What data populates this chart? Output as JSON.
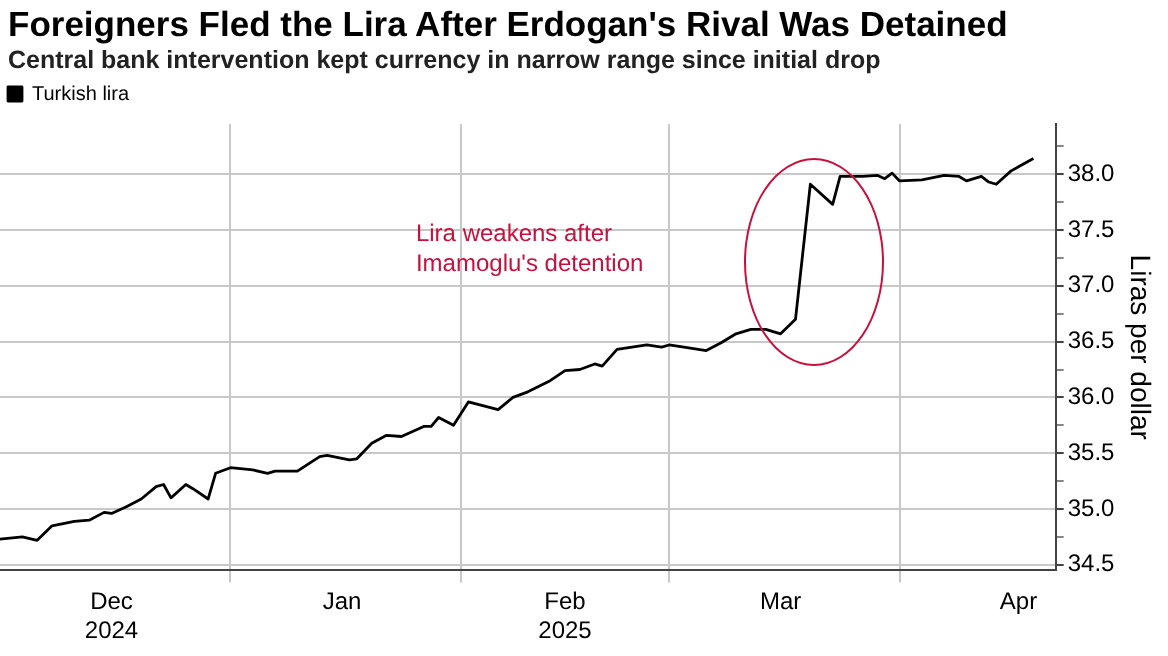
{
  "chart_data": {
    "type": "line",
    "title": "Foreigners Fled the Lira After Erdogan's Rival Was Detained",
    "subtitle": "Central bank intervention kept currency in narrow range since initial drop",
    "ylabel": "Liras per dollar",
    "x": [
      "2024-12-01",
      "2024-12-04",
      "2024-12-06",
      "2024-12-08",
      "2024-12-11",
      "2024-12-13",
      "2024-12-15",
      "2024-12-16",
      "2024-12-18",
      "2024-12-20",
      "2024-12-22",
      "2024-12-23",
      "2024-12-24",
      "2024-12-26",
      "2024-12-27",
      "2024-12-29",
      "2024-12-30",
      "2025-01-01",
      "2025-01-04",
      "2025-01-06",
      "2025-01-07",
      "2025-01-10",
      "2025-01-13",
      "2025-01-14",
      "2025-01-17",
      "2025-01-18",
      "2025-01-20",
      "2025-01-22",
      "2025-01-24",
      "2025-01-27",
      "2025-01-28",
      "2025-01-29",
      "2025-01-31",
      "2025-02-02",
      "2025-02-06",
      "2025-02-08",
      "2025-02-10",
      "2025-02-13",
      "2025-02-15",
      "2025-02-17",
      "2025-02-19",
      "2025-02-20",
      "2025-02-22",
      "2025-02-26",
      "2025-02-28",
      "2025-03-01",
      "2025-03-03",
      "2025-03-06",
      "2025-03-08",
      "2025-03-10",
      "2025-03-12",
      "2025-03-14",
      "2025-03-16",
      "2025-03-18",
      "2025-03-20",
      "2025-03-23",
      "2025-03-24",
      "2025-03-27",
      "2025-03-29",
      "2025-03-30",
      "2025-03-31",
      "2025-04-01",
      "2025-04-04",
      "2025-04-07",
      "2025-04-09",
      "2025-04-10",
      "2025-04-12",
      "2025-04-13",
      "2025-04-14",
      "2025-04-16",
      "2025-04-19"
    ],
    "series": [
      {
        "name": "Turkish lira",
        "color": "#000000",
        "values": [
          34.73,
          34.75,
          34.72,
          34.85,
          34.89,
          34.9,
          34.97,
          34.96,
          35.02,
          35.09,
          35.2,
          35.22,
          35.1,
          35.22,
          35.18,
          35.09,
          35.32,
          35.37,
          35.35,
          35.32,
          35.34,
          35.34,
          35.47,
          35.48,
          35.44,
          35.45,
          35.59,
          35.66,
          35.65,
          35.74,
          35.74,
          35.82,
          35.75,
          35.96,
          35.89,
          36.0,
          36.05,
          36.15,
          36.24,
          36.25,
          36.3,
          36.28,
          36.43,
          36.47,
          36.45,
          36.47,
          36.45,
          36.42,
          36.49,
          36.57,
          36.61,
          36.61,
          36.57,
          36.7,
          37.91,
          37.73,
          37.98,
          37.98,
          37.99,
          37.96,
          38.01,
          37.94,
          37.95,
          37.99,
          37.98,
          37.94,
          37.98,
          37.93,
          37.91,
          38.03,
          38.14
        ]
      }
    ],
    "xlim": [
      "2024-12-01",
      "2025-04-22"
    ],
    "xticks": [
      {
        "value": "2024-12-16",
        "label": "Dec\n2024"
      },
      {
        "value": "2025-01-01",
        "label": null
      },
      {
        "value": "2025-01-16",
        "label": "Jan"
      },
      {
        "value": "2025-02-01",
        "label": null
      },
      {
        "value": "2025-02-15",
        "label": "Feb\n2025"
      },
      {
        "value": "2025-03-01",
        "label": null
      },
      {
        "value": "2025-03-16",
        "label": "Mar"
      },
      {
        "value": "2025-04-01",
        "label": null
      },
      {
        "value": "2025-04-17",
        "label": "Apr"
      }
    ],
    "ylim": [
      34.45,
      38.45
    ],
    "yticks": [
      {
        "value": 34.5,
        "label": "34.5"
      },
      {
        "value": 34.75,
        "label": null
      },
      {
        "value": 35,
        "label": "35.0"
      },
      {
        "value": 35.25,
        "label": null
      },
      {
        "value": 35.5,
        "label": "35.5"
      },
      {
        "value": 35.75,
        "label": null
      },
      {
        "value": 36,
        "label": "36.0"
      },
      {
        "value": 36.25,
        "label": null
      },
      {
        "value": 36.5,
        "label": "36.5"
      },
      {
        "value": 36.75,
        "label": null
      },
      {
        "value": 37,
        "label": "37.0"
      },
      {
        "value": 37.25,
        "label": null
      },
      {
        "value": 37.5,
        "label": "37.5"
      },
      {
        "value": 37.75,
        "label": null
      },
      {
        "value": 38,
        "label": "38.0"
      },
      {
        "value": 38.25,
        "label": null
      }
    ],
    "annotations": [
      "Lira weakens after\nImamoglu's detention"
    ],
    "grid": true,
    "legend": "top left",
    "marker": "none",
    "line_style": "solid"
  }
}
